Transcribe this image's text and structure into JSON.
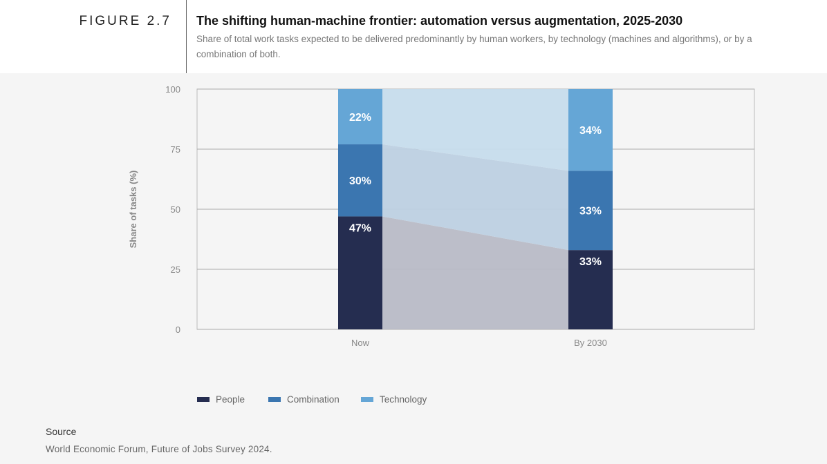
{
  "header": {
    "figure_label": "FIGURE 2.7",
    "title": "The shifting human-machine frontier: automation versus augmentation, 2025-2030",
    "subtitle": "Share of total work tasks expected to be delivered predominantly by human workers, by technology (machines and algorithms), or by a combination of both."
  },
  "chart_data": {
    "type": "bar",
    "stacked": true,
    "categories": [
      "Now",
      "By 2030"
    ],
    "series": [
      {
        "name": "People",
        "values": [
          47,
          33
        ],
        "labels": [
          "47%",
          "33%"
        ],
        "color": "#252d50"
      },
      {
        "name": "Combination",
        "values": [
          30,
          33
        ],
        "labels": [
          "30%",
          "33%"
        ],
        "color": "#3b76b0"
      },
      {
        "name": "Technology",
        "values": [
          22,
          34
        ],
        "labels": [
          "22%",
          "34%"
        ],
        "color": "#65a6d6"
      }
    ],
    "ylabel": "Share of tasks (%)",
    "ylim": [
      0,
      100
    ],
    "yticks": [
      "0",
      "25",
      "50",
      "75",
      "100"
    ],
    "grid": true,
    "legend_position": "bottom-left"
  },
  "source": {
    "heading": "Source",
    "text": "World Economic Forum, Future of Jobs Survey 2024."
  }
}
